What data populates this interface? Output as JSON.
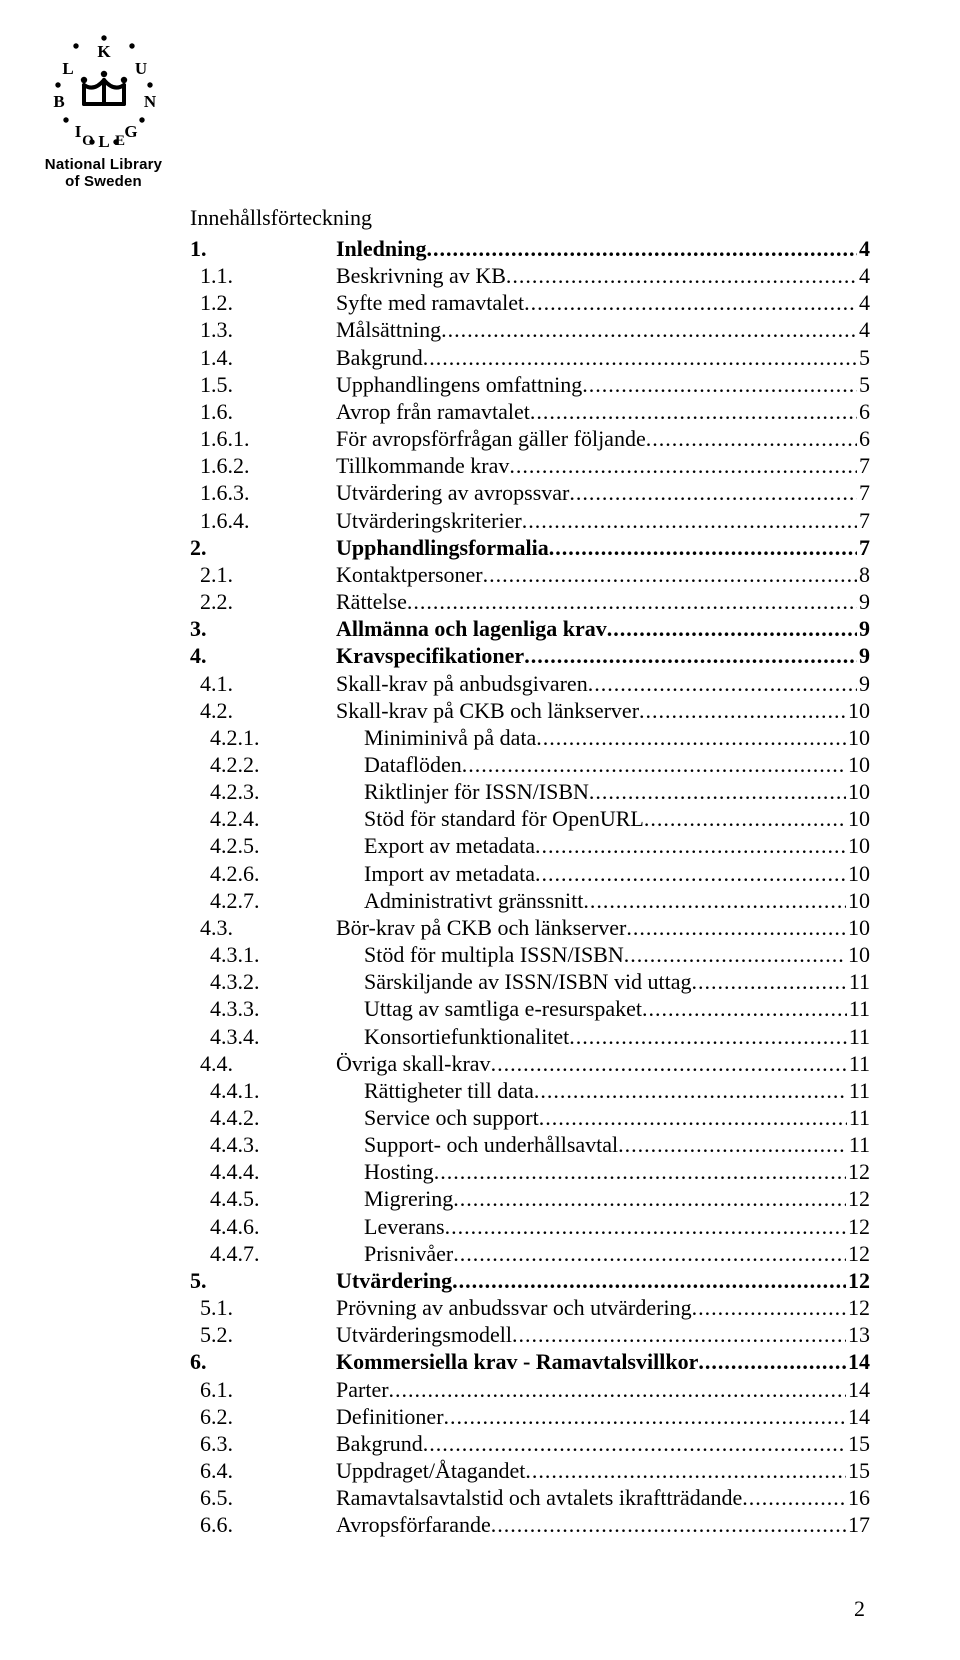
{
  "logo": {
    "line1": "National Library",
    "line2": "of Sweden"
  },
  "toc_title": "Innehållsförteckning",
  "page_number": "2",
  "entries": [
    {
      "num": "1.",
      "label": "Inledning",
      "page": "4",
      "bold": true,
      "level": 0
    },
    {
      "num": "1.1.",
      "label": "Beskrivning av KB",
      "page": "4",
      "bold": false,
      "level": 1
    },
    {
      "num": "1.2.",
      "label": "Syfte med ramavtalet",
      "page": "4",
      "bold": false,
      "level": 1
    },
    {
      "num": "1.3.",
      "label": "Målsättning",
      "page": "4",
      "bold": false,
      "level": 1
    },
    {
      "num": "1.4.",
      "label": "Bakgrund",
      "page": "5",
      "bold": false,
      "level": 1
    },
    {
      "num": "1.5.",
      "label": "Upphandlingens omfattning",
      "page": "5",
      "bold": false,
      "level": 1
    },
    {
      "num": "1.6.",
      "label": "Avrop från ramavtalet",
      "page": "6",
      "bold": false,
      "level": 1
    },
    {
      "num": "1.6.1.",
      "label": "För avropsförfrågan gäller följande",
      "page": "6",
      "bold": false,
      "level": 1
    },
    {
      "num": "1.6.2.",
      "label": "Tillkommande krav",
      "page": "7",
      "bold": false,
      "level": 1
    },
    {
      "num": "1.6.3.",
      "label": "Utvärdering av avropssvar",
      "page": "7",
      "bold": false,
      "level": 1
    },
    {
      "num": "1.6.4.",
      "label": "Utvärderingskriterier",
      "page": "7",
      "bold": false,
      "level": 1
    },
    {
      "num": "2.",
      "label": "Upphandlingsformalia",
      "page": "7",
      "bold": true,
      "level": 0
    },
    {
      "num": "2.1.",
      "label": "Kontaktpersoner",
      "page": "8",
      "bold": false,
      "level": 1
    },
    {
      "num": "2.2.",
      "label": "Rättelse",
      "page": "9",
      "bold": false,
      "level": 1
    },
    {
      "num": "3.",
      "label": "Allmänna och lagenliga krav",
      "page": "9",
      "bold": true,
      "level": 0
    },
    {
      "num": "4.",
      "label": "Kravspecifikationer",
      "page": "9",
      "bold": true,
      "level": 0
    },
    {
      "num": "4.1.",
      "label": "Skall-krav på anbudsgivaren",
      "page": "9",
      "bold": false,
      "level": 1
    },
    {
      "num": "4.2.",
      "label": "Skall-krav på CKB och länkserver",
      "page": "10",
      "bold": false,
      "level": 1
    },
    {
      "num": "4.2.1.",
      "label": "Miniminivå på data",
      "page": "10",
      "bold": false,
      "level": 2
    },
    {
      "num": "4.2.2.",
      "label": "Dataflöden",
      "page": "10",
      "bold": false,
      "level": 2
    },
    {
      "num": "4.2.3.",
      "label": "Riktlinjer för ISSN/ISBN",
      "page": "10",
      "bold": false,
      "level": 2
    },
    {
      "num": "4.2.4.",
      "label": "Stöd för standard för OpenURL",
      "page": "10",
      "bold": false,
      "level": 2
    },
    {
      "num": "4.2.5.",
      "label": "Export av metadata",
      "page": "10",
      "bold": false,
      "level": 2
    },
    {
      "num": "4.2.6.",
      "label": "Import av metadata",
      "page": "10",
      "bold": false,
      "level": 2
    },
    {
      "num": "4.2.7.",
      "label": "Administrativt gränssnitt",
      "page": "10",
      "bold": false,
      "level": 2
    },
    {
      "num": "4.3.",
      "label": "Bör-krav på CKB och länkserver",
      "page": "10",
      "bold": false,
      "level": 1
    },
    {
      "num": "4.3.1.",
      "label": "Stöd för multipla ISSN/ISBN",
      "page": "10",
      "bold": false,
      "level": 2
    },
    {
      "num": "4.3.2.",
      "label": "Särskiljande av ISSN/ISBN vid uttag",
      "page": "11",
      "bold": false,
      "level": 2
    },
    {
      "num": "4.3.3.",
      "label": "Uttag av samtliga e-resurspaket",
      "page": "11",
      "bold": false,
      "level": 2
    },
    {
      "num": "4.3.4.",
      "label": "Konsortiefunktionalitet",
      "page": "11",
      "bold": false,
      "level": 2
    },
    {
      "num": "4.4.",
      "label": "Övriga skall-krav",
      "page": "11",
      "bold": false,
      "level": 1
    },
    {
      "num": "4.4.1.",
      "label": "Rättigheter till data",
      "page": "11",
      "bold": false,
      "level": 2
    },
    {
      "num": "4.4.2.",
      "label": "Service och support",
      "page": "11",
      "bold": false,
      "level": 2
    },
    {
      "num": "4.4.3.",
      "label": "Support- och underhållsavtal",
      "page": "11",
      "bold": false,
      "level": 2
    },
    {
      "num": "4.4.4.",
      "label": "Hosting",
      "page": "12",
      "bold": false,
      "level": 2
    },
    {
      "num": "4.4.5.",
      "label": "Migrering",
      "page": "12",
      "bold": false,
      "level": 2
    },
    {
      "num": "4.4.6.",
      "label": "Leverans",
      "page": "12",
      "bold": false,
      "level": 2
    },
    {
      "num": "4.4.7.",
      "label": "Prisnivåer",
      "page": "12",
      "bold": false,
      "level": 2
    },
    {
      "num": "5.",
      "label": "Utvärdering",
      "page": "12",
      "bold": true,
      "level": 0
    },
    {
      "num": "5.1.",
      "label": "Prövning av anbudssvar och utvärdering",
      "page": "12",
      "bold": false,
      "level": 1
    },
    {
      "num": "5.2.",
      "label": "Utvärderingsmodell",
      "page": "13",
      "bold": false,
      "level": 1
    },
    {
      "num": "6.",
      "label": "Kommersiella krav - Ramavtalsvillkor",
      "page": "14",
      "bold": true,
      "level": 0
    },
    {
      "num": "6.1.",
      "label": "Parter",
      "page": "14",
      "bold": false,
      "level": 1
    },
    {
      "num": "6.2.",
      "label": "Definitioner",
      "page": "14",
      "bold": false,
      "level": 1
    },
    {
      "num": "6.3.",
      "label": "Bakgrund",
      "page": "15",
      "bold": false,
      "level": 1
    },
    {
      "num": "6.4.",
      "label": "Uppdraget/Åtagandet",
      "page": "15",
      "bold": false,
      "level": 1
    },
    {
      "num": "6.5.",
      "label": "Ramavtalsavtalstid och avtalets ikraftträdande",
      "page": "16",
      "bold": false,
      "level": 1
    },
    {
      "num": "6.6.",
      "label": "Avropsförfarande",
      "page": "17",
      "bold": false,
      "level": 1
    }
  ]
}
